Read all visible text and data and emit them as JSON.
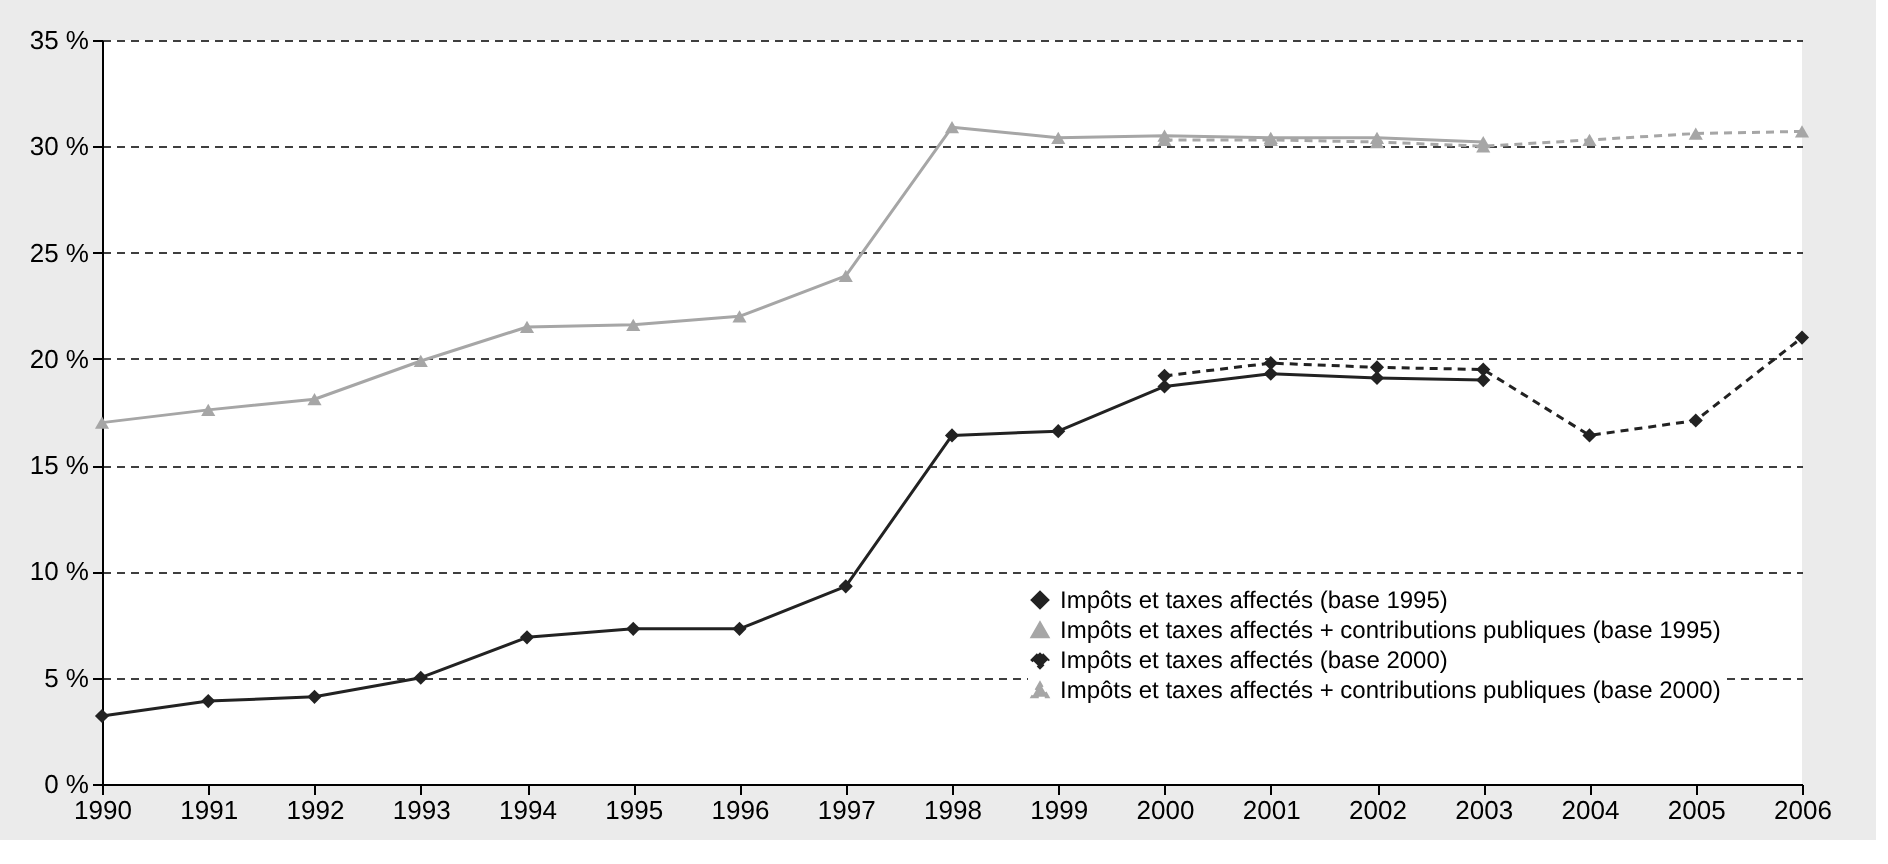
{
  "chart_data": {
    "type": "line",
    "x": [
      1990,
      1991,
      1992,
      1993,
      1994,
      1995,
      1996,
      1997,
      1998,
      1999,
      2000,
      2001,
      2002,
      2003,
      2004,
      2005,
      2006
    ],
    "xlim": [
      1990,
      2006
    ],
    "xticks": [
      1990,
      1991,
      1992,
      1993,
      1994,
      1995,
      1996,
      1997,
      1998,
      1999,
      2000,
      2001,
      2002,
      2003,
      2004,
      2005,
      2006
    ],
    "ylim": [
      0,
      35
    ],
    "yticks": [
      {
        "value": 0,
        "label": "0 %"
      },
      {
        "value": 5,
        "label": "5 %"
      },
      {
        "value": 10,
        "label": "10 %"
      },
      {
        "value": 15,
        "label": "15 %"
      },
      {
        "value": 20,
        "label": "20 %"
      },
      {
        "value": 25,
        "label": "25 %"
      },
      {
        "value": 30,
        "label": "30 %"
      },
      {
        "value": 35,
        "label": "35 %"
      }
    ],
    "grid": "y",
    "legend": "bottom right",
    "series": [
      {
        "name": "Impôts et taxes affectés (base 1995)",
        "color": "#222222",
        "marker": "diamond",
        "line_style": "solid",
        "values": [
          3.2,
          3.9,
          4.1,
          5.0,
          6.9,
          7.3,
          7.3,
          9.3,
          16.4,
          16.6,
          18.7,
          19.3,
          19.1,
          19.0,
          null,
          null,
          null
        ]
      },
      {
        "name": "Impôts et taxes affectés + contributions publiques (base 1995)",
        "color": "#a6a6a6",
        "marker": "triangle",
        "line_style": "solid",
        "values": [
          17.0,
          17.6,
          18.1,
          19.9,
          21.5,
          21.6,
          22.0,
          23.9,
          30.9,
          30.4,
          30.5,
          30.4,
          30.4,
          30.2,
          null,
          null,
          null
        ]
      },
      {
        "name": "Impôts et taxes affectés (base 2000)",
        "color": "#222222",
        "marker": "diamond",
        "line_style": "dashed",
        "values": [
          null,
          null,
          null,
          null,
          null,
          null,
          null,
          null,
          null,
          null,
          19.2,
          19.8,
          19.6,
          19.5,
          16.4,
          17.1,
          21.0
        ]
      },
      {
        "name": "Impôts et taxes affectés + contributions publiques (base 2000)",
        "color": "#a6a6a6",
        "marker": "triangle",
        "line_style": "dashed",
        "values": [
          null,
          null,
          null,
          null,
          null,
          null,
          null,
          null,
          null,
          null,
          30.3,
          30.3,
          30.2,
          30.0,
          30.3,
          30.6,
          30.7
        ]
      }
    ]
  }
}
